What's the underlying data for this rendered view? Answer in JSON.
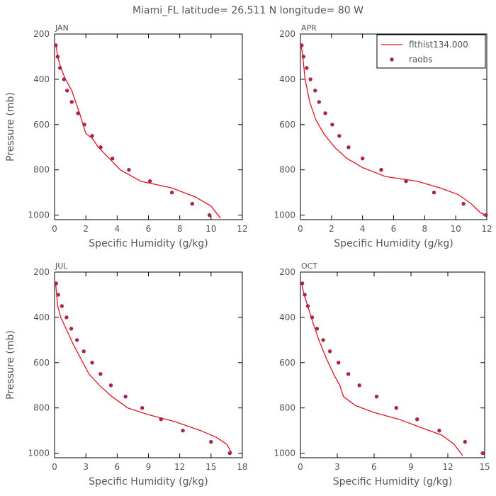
{
  "title": "Miami_FL   latitude= 26.511 N longitude= 80 W",
  "colors": {
    "model": "#e0141e",
    "obs": "#a8234f",
    "axis": "#000000",
    "text": "#555555"
  },
  "legend": {
    "placement": "top-right",
    "panel": 1,
    "items": [
      "flthist134.000",
      "raobs"
    ]
  },
  "chart_data": [
    {
      "type": "line",
      "label": "JAN",
      "xlabel": "Specific Humidity (g/kg)",
      "ylabel": "Pressure (mb)",
      "xlim": [
        0,
        12
      ],
      "xticks": [
        0,
        2,
        4,
        6,
        8,
        10,
        12
      ],
      "ylim": [
        200,
        1020
      ],
      "yticks": [
        200,
        400,
        600,
        800,
        1000
      ],
      "y_inverted": true,
      "series": [
        {
          "name": "flthist134.000",
          "style": "line",
          "x": [
            0.1,
            0.2,
            0.4,
            0.7,
            1.1,
            1.6,
            2.0,
            2.4,
            2.8,
            3.5,
            4.2,
            5.5,
            7.5,
            9.0,
            10.0,
            10.6
          ],
          "y": [
            250,
            300,
            350,
            400,
            450,
            550,
            640,
            660,
            700,
            750,
            800,
            850,
            880,
            920,
            960,
            1013
          ]
        },
        {
          "name": "raobs",
          "style": "points",
          "x": [
            0.08,
            0.2,
            0.35,
            0.6,
            0.8,
            1.1,
            1.5,
            1.9,
            2.4,
            2.95,
            3.7,
            4.75,
            6.1,
            7.5,
            8.8,
            9.9
          ],
          "y": [
            250,
            300,
            350,
            400,
            450,
            500,
            550,
            600,
            650,
            700,
            750,
            800,
            850,
            900,
            950,
            1000
          ]
        }
      ]
    },
    {
      "type": "line",
      "label": "APR",
      "xlabel": "Specific Humidity (g/kg)",
      "ylabel": "",
      "xlim": [
        0,
        12
      ],
      "xticks": [
        0,
        2,
        4,
        6,
        8,
        10,
        12
      ],
      "ylim": [
        200,
        1020
      ],
      "yticks": [
        200,
        400,
        600,
        800,
        1000
      ],
      "y_inverted": true,
      "series": [
        {
          "name": "flthist134.000",
          "style": "line",
          "x": [
            0.05,
            0.15,
            0.3,
            0.6,
            1.0,
            1.5,
            2.2,
            3.0,
            4.0,
            5.5,
            7.5,
            9.0,
            10.2,
            11.0,
            11.6,
            12.0
          ],
          "y": [
            250,
            300,
            400,
            500,
            580,
            640,
            700,
            750,
            790,
            830,
            850,
            880,
            910,
            950,
            990,
            1000
          ]
        },
        {
          "name": "raobs",
          "style": "points",
          "x": [
            0.08,
            0.2,
            0.4,
            0.65,
            0.95,
            1.2,
            1.6,
            2.05,
            2.5,
            3.1,
            4.0,
            5.2,
            6.8,
            8.6,
            10.5,
            11.95
          ],
          "y": [
            250,
            300,
            350,
            400,
            450,
            500,
            550,
            600,
            650,
            700,
            750,
            800,
            850,
            900,
            950,
            1000
          ]
        }
      ]
    },
    {
      "type": "line",
      "label": "JUL",
      "xlabel": "Specific Humidity (g/kg)",
      "ylabel": "Pressure (mb)",
      "xlim": [
        0,
        18
      ],
      "xticks": [
        0,
        3,
        6,
        9,
        12,
        15,
        18
      ],
      "ylim": [
        200,
        1020
      ],
      "yticks": [
        200,
        400,
        600,
        800,
        1000
      ],
      "y_inverted": true,
      "series": [
        {
          "name": "flthist134.000",
          "style": "line",
          "x": [
            0.1,
            0.3,
            0.6,
            1.1,
            1.8,
            2.6,
            3.3,
            4.3,
            5.5,
            7.0,
            9.0,
            11.5,
            14.0,
            15.5,
            16.5,
            17.0
          ],
          "y": [
            250,
            350,
            400,
            450,
            520,
            590,
            650,
            700,
            750,
            800,
            830,
            860,
            900,
            930,
            960,
            1000
          ]
        },
        {
          "name": "raobs",
          "style": "points",
          "x": [
            0.15,
            0.35,
            0.7,
            1.15,
            1.6,
            2.15,
            2.8,
            3.6,
            4.4,
            5.4,
            6.8,
            8.4,
            10.2,
            12.3,
            15.0,
            16.8
          ],
          "y": [
            250,
            300,
            350,
            400,
            450,
            500,
            550,
            600,
            650,
            700,
            750,
            800,
            850,
            900,
            950,
            1000
          ]
        }
      ]
    },
    {
      "type": "line",
      "label": "OCT",
      "xlabel": "Specific Humidity (g/kg)",
      "ylabel": "",
      "xlim": [
        0,
        15
      ],
      "xticks": [
        0,
        3,
        6,
        9,
        12,
        15
      ],
      "ylim": [
        200,
        1020
      ],
      "yticks": [
        200,
        400,
        600,
        800,
        1000
      ],
      "y_inverted": true,
      "series": [
        {
          "name": "flthist134.000",
          "style": "line",
          "x": [
            0.1,
            0.3,
            0.6,
            1.0,
            1.5,
            2.1,
            2.7,
            3.2,
            3.5,
            4.5,
            6.0,
            8.0,
            10.0,
            11.5,
            12.5,
            13.2
          ],
          "y": [
            250,
            300,
            350,
            420,
            500,
            580,
            650,
            700,
            750,
            790,
            820,
            850,
            890,
            920,
            960,
            1010
          ]
        },
        {
          "name": "raobs",
          "style": "points",
          "x": [
            0.15,
            0.35,
            0.6,
            0.95,
            1.35,
            1.85,
            2.4,
            3.1,
            3.9,
            4.8,
            6.2,
            7.8,
            9.5,
            11.3,
            13.4,
            14.85
          ],
          "y": [
            250,
            300,
            350,
            400,
            450,
            500,
            550,
            600,
            650,
            700,
            750,
            800,
            850,
            900,
            950,
            1000
          ]
        }
      ]
    }
  ]
}
